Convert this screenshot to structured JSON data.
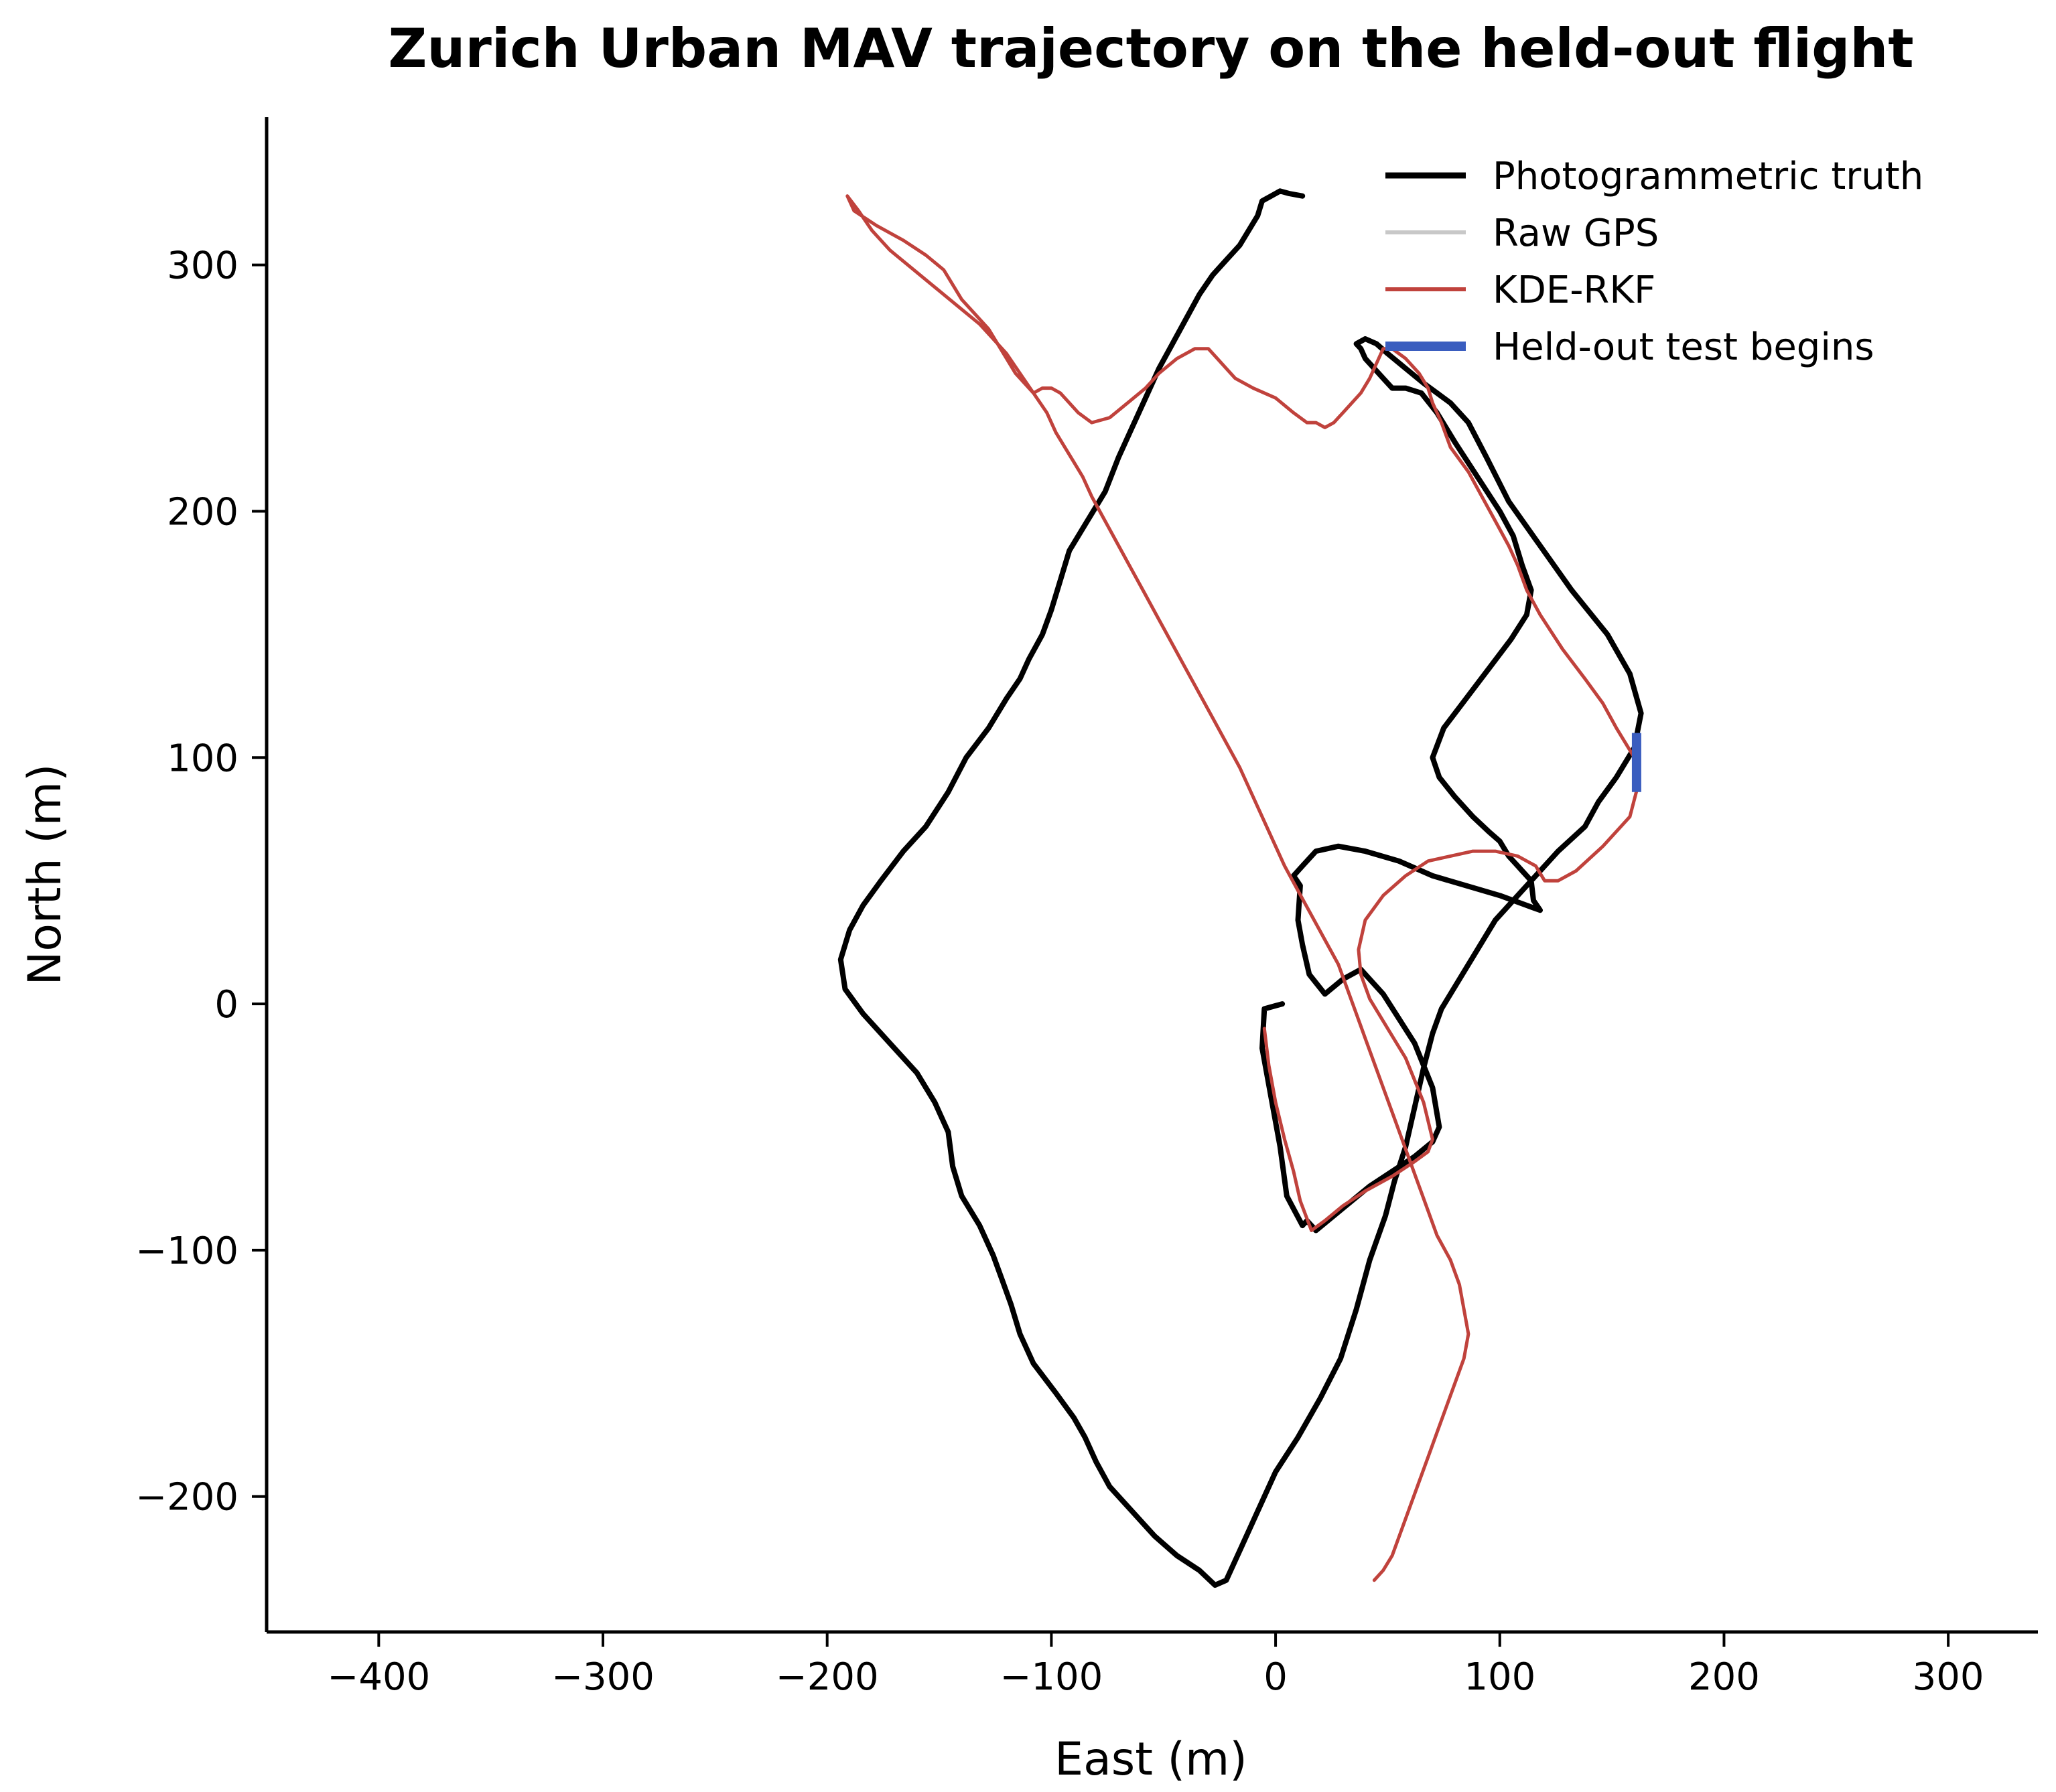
{
  "chart_data": {
    "type": "line",
    "title": "Zurich Urban MAV trajectory on the held-out flight",
    "xlabel": "East (m)",
    "ylabel": "North (m)",
    "xlim": [
      -450,
      340
    ],
    "ylim": [
      -255,
      360
    ],
    "xticks": [
      -400,
      -300,
      -200,
      -100,
      0,
      100,
      200,
      300
    ],
    "yticks": [
      -200,
      -100,
      0,
      100,
      200,
      300
    ],
    "grid": false,
    "legend_position": "top-right",
    "series": [
      {
        "name": "Photogrammetric truth",
        "color": "#000000",
        "x": [
          3,
          -5,
          -6,
          -2,
          2,
          5,
          12,
          14,
          18,
          26,
          34,
          42,
          52,
          62,
          70,
          73,
          70,
          62,
          55,
          48,
          38,
          30,
          22,
          15,
          12,
          10,
          11,
          8,
          12,
          18,
          28,
          40,
          55,
          70,
          85,
          100,
          112,
          118,
          115,
          114,
          110,
          108,
          104,
          100,
          95,
          88,
          80,
          73,
          70,
          75,
          85,
          95,
          105,
          112,
          114,
          110,
          106,
          100,
          90,
          80,
          72,
          65,
          58,
          52,
          48,
          44,
          40,
          38,
          36,
          40,
          45,
          50,
          58,
          66,
          72,
          78,
          86,
          94,
          104,
          118,
          132,
          148,
          158,
          163,
          160,
          152,
          144,
          138,
          126,
          110,
          98,
          90,
          82,
          74,
          70,
          66,
          62,
          58,
          53,
          49,
          42,
          36,
          29,
          20,
          10,
          0,
          -8,
          -15,
          -22,
          -27,
          -34,
          -44,
          -54,
          -64,
          -74,
          -80,
          -85,
          -90,
          -98,
          -108,
          -114,
          -118,
          -122,
          -126,
          -132,
          -140,
          -144,
          -146,
          -152,
          -160,
          -172,
          -184,
          -192,
          -194,
          -190,
          -184,
          -176,
          -166,
          -156,
          -146,
          -138,
          -128,
          -120,
          -114,
          -110,
          -104,
          -100,
          -96,
          -92,
          -84,
          -76,
          -70,
          -64,
          -58,
          -52,
          -46,
          -40,
          -34,
          -28,
          -22,
          -16,
          -12,
          -8,
          -6,
          -2,
          2,
          6,
          12
        ],
        "y": [
          0,
          -2,
          -18,
          -38,
          -58,
          -78,
          -90,
          -88,
          -92,
          -86,
          -80,
          -74,
          -68,
          -62,
          -56,
          -50,
          -34,
          -16,
          -6,
          4,
          14,
          10,
          4,
          12,
          24,
          34,
          48,
          52,
          56,
          62,
          64,
          62,
          58,
          52,
          48,
          44,
          40,
          38,
          42,
          50,
          54,
          56,
          60,
          66,
          70,
          76,
          84,
          92,
          100,
          112,
          124,
          136,
          148,
          158,
          168,
          178,
          190,
          200,
          214,
          228,
          240,
          248,
          250,
          250,
          254,
          258,
          262,
          266,
          268,
          270,
          268,
          264,
          258,
          252,
          248,
          244,
          236,
          222,
          204,
          186,
          168,
          150,
          134,
          118,
          104,
          92,
          82,
          72,
          62,
          46,
          34,
          22,
          10,
          -2,
          -12,
          -26,
          -42,
          -58,
          -72,
          -86,
          -104,
          -124,
          -144,
          -160,
          -176,
          -190,
          -206,
          -220,
          -234,
          -236,
          -230,
          -224,
          -216,
          -206,
          -196,
          -186,
          -176,
          -168,
          -158,
          -146,
          -134,
          -122,
          -112,
          -102,
          -90,
          -78,
          -66,
          -52,
          -40,
          -28,
          -16,
          -4,
          6,
          18,
          30,
          40,
          50,
          62,
          72,
          86,
          100,
          112,
          124,
          132,
          140,
          150,
          160,
          172,
          184,
          196,
          208,
          222,
          234,
          246,
          258,
          268,
          278,
          288,
          296,
          302,
          308,
          314,
          320,
          326,
          328,
          330,
          329,
          328
        ],
        "width": 8
      },
      {
        "name": "Raw GPS",
        "color": "#c8c8c8",
        "x": [],
        "y": [],
        "width": 5
      },
      {
        "name": "KDE-RKF",
        "color": "#c0423c",
        "x": [
          -5,
          -3,
          0,
          4,
          8,
          11,
          16,
          22,
          30,
          40,
          52,
          62,
          68,
          70,
          66,
          58,
          50,
          42,
          38,
          37,
          40,
          48,
          58,
          68,
          78,
          88,
          98,
          108,
          116,
          120,
          126,
          134,
          146,
          158,
          162,
          160,
          152,
          146,
          138,
          128,
          118,
          112,
          108,
          104,
          98,
          92,
          86,
          78,
          74,
          70,
          68,
          64,
          58,
          52,
          48,
          46,
          42,
          38,
          34,
          30,
          28,
          26,
          22,
          18,
          14,
          8,
          0,
          -10,
          -18,
          -22,
          -26,
          -30,
          -36,
          -44,
          -52,
          -58,
          -66,
          -74,
          -82,
          -88,
          -92,
          -96,
          -100,
          -104,
          -108,
          -112,
          -116,
          -120,
          -124,
          -128,
          -134,
          -140,
          -144,
          -148,
          -156,
          -166,
          -178,
          -188,
          -191,
          -186,
          -180,
          -172,
          -164,
          -156,
          -148,
          -140,
          -132,
          -126,
          -120,
          -114,
          -108,
          -102,
          -98,
          -94,
          -90,
          -86,
          -82,
          -76,
          -70,
          -64,
          -58,
          -52,
          -46,
          -40,
          -34,
          -28,
          -22,
          -16,
          -12,
          -8,
          -4,
          0,
          4,
          10,
          16,
          22,
          28,
          32,
          36,
          40,
          44,
          48,
          52,
          56,
          60,
          64,
          68,
          72,
          78,
          82,
          84,
          86,
          84,
          80,
          76,
          72,
          68,
          64,
          60,
          56,
          52,
          48,
          44
        ],
        "y": [
          -10,
          -25,
          -40,
          -55,
          -68,
          -80,
          -92,
          -88,
          -82,
          -76,
          -70,
          -64,
          -60,
          -55,
          -40,
          -22,
          -10,
          2,
          12,
          22,
          34,
          44,
          52,
          58,
          60,
          62,
          62,
          60,
          56,
          50,
          50,
          54,
          64,
          76,
          90,
          100,
          112,
          122,
          132,
          144,
          158,
          168,
          178,
          186,
          196,
          206,
          216,
          226,
          236,
          244,
          250,
          256,
          262,
          266,
          266,
          262,
          254,
          248,
          244,
          240,
          238,
          236,
          234,
          236,
          236,
          240,
          246,
          250,
          254,
          258,
          262,
          266,
          266,
          262,
          256,
          250,
          244,
          238,
          236,
          240,
          244,
          248,
          250,
          250,
          248,
          252,
          256,
          262,
          268,
          274,
          280,
          286,
          292,
          298,
          304,
          310,
          316,
          322,
          328,
          322,
          314,
          306,
          300,
          294,
          288,
          282,
          276,
          270,
          264,
          256,
          248,
          240,
          232,
          226,
          220,
          214,
          206,
          196,
          186,
          176,
          166,
          156,
          146,
          136,
          126,
          116,
          106,
          96,
          88,
          80,
          72,
          64,
          56,
          46,
          36,
          26,
          16,
          6,
          -4,
          -14,
          -24,
          -34,
          -44,
          -54,
          -64,
          -74,
          -84,
          -94,
          -104,
          -114,
          -124,
          -134,
          -144,
          -154,
          -164,
          -174,
          -184,
          -194,
          -204,
          -214,
          -224,
          -230,
          -234
        ],
        "width": 5
      }
    ],
    "marker": {
      "name": "Held-out test begins",
      "color": "#3a5dbf",
      "x": 161,
      "y_from": 86,
      "y_to": 110
    }
  }
}
